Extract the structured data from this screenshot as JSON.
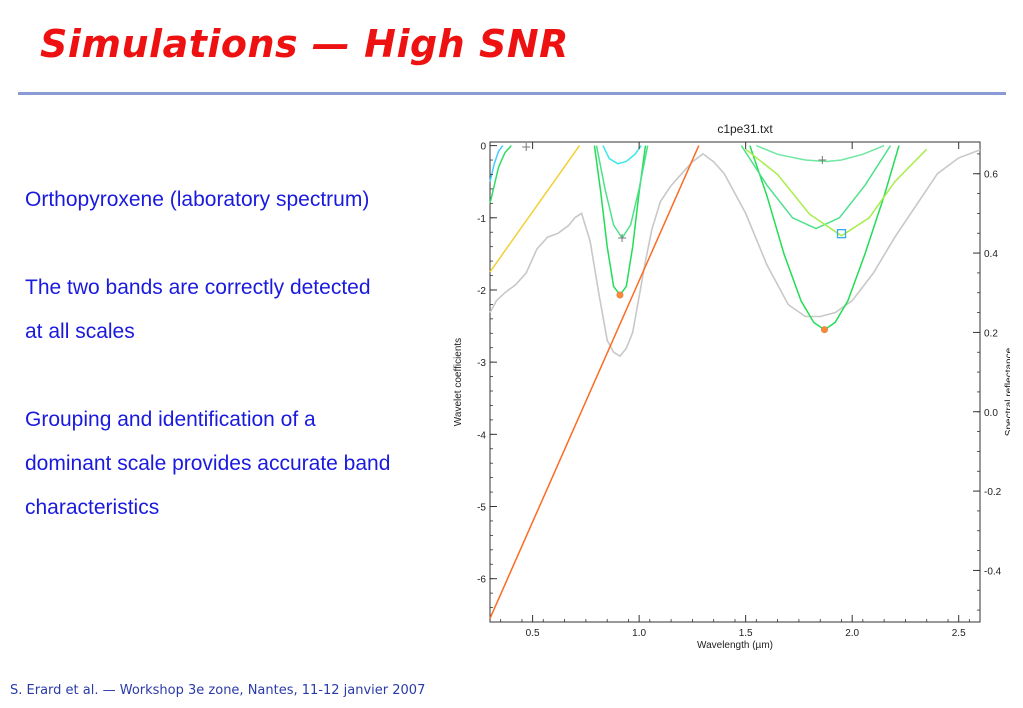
{
  "slide": {
    "title": "Simulations — High SNR",
    "bullets": [
      "Orthopyroxene (laboratory spectrum)",
      "The two bands are correctly detected",
      "at all scales",
      "Grouping and identification of a",
      "dominant scale provides accurate band",
      "characteristics"
    ],
    "footer": "S. Erard et al. — Workshop 3e zone, Nantes, 11-12 janvier 2007"
  },
  "chart_data": {
    "type": "line",
    "title": "c1pe31.txt",
    "xlabel": "Wavelength (µm)",
    "ylabel_left": "Wavelet coefficients",
    "ylabel_right": "Spectral reflectance",
    "xlim": [
      0.3,
      2.6
    ],
    "ylim_left": [
      -6.6,
      0.05
    ],
    "ylim_right": [
      -0.53,
      0.68
    ],
    "x_ticks": [
      "0.5",
      "1.0",
      "1.5",
      "2.0",
      "2.5"
    ],
    "x_tick_values": [
      0.5,
      1.0,
      1.5,
      2.0,
      2.5
    ],
    "y_left_ticks": [
      "0",
      "-1",
      "-2",
      "-3",
      "-4",
      "-5",
      "-6"
    ],
    "y_left_tick_values": [
      0,
      -1,
      -2,
      -3,
      -4,
      -5,
      -6
    ],
    "y_right_ticks": [
      "0.6",
      "0.4",
      "0.2",
      "0.0",
      "-0.2",
      "-0.4"
    ],
    "y_right_tick_values": [
      0.6,
      0.4,
      0.2,
      0.0,
      -0.2,
      -0.4
    ],
    "series": [
      {
        "color": "#c8c8c8",
        "axis": "right",
        "x": [
          0.3,
          0.33,
          0.37,
          0.42,
          0.47,
          0.52,
          0.57,
          0.62,
          0.67,
          0.7,
          0.73,
          0.77,
          0.81,
          0.85,
          0.88,
          0.91,
          0.94,
          0.97,
          1.0,
          1.03,
          1.06,
          1.1,
          1.15,
          1.2,
          1.25,
          1.3,
          1.35,
          1.4,
          1.5,
          1.6,
          1.7,
          1.78,
          1.85,
          1.92,
          2.0,
          2.1,
          2.2,
          2.3,
          2.4,
          2.5,
          2.6
        ],
        "y": [
          0.25,
          0.28,
          0.3,
          0.32,
          0.35,
          0.41,
          0.44,
          0.45,
          0.47,
          0.49,
          0.5,
          0.43,
          0.3,
          0.18,
          0.15,
          0.14,
          0.16,
          0.2,
          0.29,
          0.38,
          0.46,
          0.53,
          0.57,
          0.6,
          0.63,
          0.65,
          0.63,
          0.6,
          0.5,
          0.37,
          0.27,
          0.24,
          0.24,
          0.25,
          0.28,
          0.35,
          0.44,
          0.52,
          0.6,
          0.64,
          0.66
        ]
      },
      {
        "color": "#22dd55",
        "axis": "left",
        "x": [
          0.79,
          0.82,
          0.85,
          0.88,
          0.91,
          0.94,
          0.97,
          1.0,
          1.03
        ],
        "y": [
          0.0,
          -0.65,
          -1.4,
          -1.95,
          -2.07,
          -1.95,
          -1.4,
          -0.65,
          0.0
        ]
      },
      {
        "color": "#22dd55",
        "axis": "left",
        "x": [
          1.52,
          1.6,
          1.68,
          1.76,
          1.82,
          1.87,
          1.92,
          1.98,
          2.06,
          2.15,
          2.22
        ],
        "y": [
          0.0,
          -0.7,
          -1.5,
          -2.15,
          -2.45,
          -2.55,
          -2.45,
          -2.15,
          -1.5,
          -0.7,
          0.0
        ]
      },
      {
        "color": "#4de089",
        "axis": "left",
        "x": [
          0.8,
          0.84,
          0.88,
          0.92,
          0.96,
          1.0,
          1.04
        ],
        "y": [
          0.0,
          -0.6,
          -1.1,
          -1.28,
          -1.1,
          -0.6,
          0.0
        ]
      },
      {
        "color": "#4de089",
        "axis": "left",
        "x": [
          1.48,
          1.6,
          1.72,
          1.83,
          1.94,
          2.06,
          2.18
        ],
        "y": [
          0.0,
          -0.55,
          -1.0,
          -1.15,
          -1.0,
          -0.55,
          0.0
        ]
      },
      {
        "color": "#a8ee4a",
        "axis": "left",
        "x": [
          1.5,
          1.65,
          1.8,
          1.95,
          2.08,
          2.2,
          2.35
        ],
        "y": [
          -0.05,
          -0.4,
          -0.95,
          -1.25,
          -1.0,
          -0.5,
          -0.05
        ]
      },
      {
        "color": "#6ee8a0",
        "axis": "left",
        "x": [
          1.55,
          1.65,
          1.78,
          1.88,
          1.95,
          2.05,
          2.15
        ],
        "y": [
          0.0,
          -0.12,
          -0.2,
          -0.22,
          -0.2,
          -0.12,
          0.0
        ]
      },
      {
        "color": "#3ae8e8",
        "axis": "left",
        "x": [
          0.83,
          0.86,
          0.9,
          0.94,
          0.98,
          1.01
        ],
        "y": [
          0.0,
          -0.18,
          -0.25,
          -0.22,
          -0.12,
          0.0
        ]
      },
      {
        "color": "#44ccff",
        "axis": "left",
        "x": [
          0.3,
          0.32,
          0.34,
          0.36
        ],
        "y": [
          -0.5,
          -0.25,
          -0.08,
          0.0
        ]
      },
      {
        "color": "#33dd66",
        "axis": "left",
        "x": [
          0.3,
          0.32,
          0.34,
          0.37,
          0.4
        ],
        "y": [
          -0.8,
          -0.55,
          -0.3,
          -0.1,
          0.0
        ]
      },
      {
        "color": "#f2cf33",
        "axis": "left",
        "x": [
          0.3,
          0.72
        ],
        "y": [
          -1.75,
          0.0
        ]
      },
      {
        "color": "#ff6a22",
        "axis": "left",
        "x": [
          0.3,
          1.28
        ],
        "y": [
          -6.55,
          0.0
        ]
      }
    ],
    "markers": [
      {
        "shape": "square",
        "color": "#33aaee",
        "x": 1.95,
        "y": -1.22
      },
      {
        "shape": "dot",
        "color": "#ff8833",
        "x": 1.87,
        "y": -2.55
      },
      {
        "shape": "dot",
        "color": "#ff8833",
        "x": 0.91,
        "y": -2.07
      },
      {
        "shape": "plus",
        "color": "#777777",
        "x": 0.92,
        "y": -1.28
      },
      {
        "shape": "plus",
        "color": "#777777",
        "x": 1.86,
        "y": -0.2
      },
      {
        "shape": "plus",
        "color": "#777777",
        "x": 0.47,
        "y": -0.02
      }
    ]
  }
}
